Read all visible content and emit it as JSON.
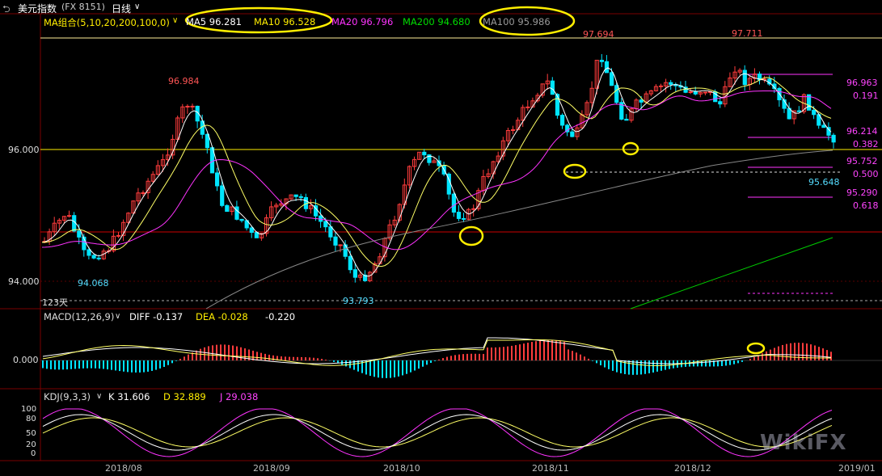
{
  "header": {
    "back_icon": "back-arrow-icon",
    "title": "美元指数",
    "code": "(FX 8151)",
    "period": "日线",
    "chevron_icon": "chevron-down-icon"
  },
  "ma_legend": {
    "group": "MA组合(5,10,20,200,100,0)",
    "ma5": "MA5 96.281",
    "ma10": "MA10 96.528",
    "ma20": "MA20 96.796",
    "ma200": "MA200 94.680",
    "ma100": "MA100 95.986"
  },
  "macd_legend": {
    "name": "MACD(12,26,9)",
    "diff": "DIFF -0.137",
    "dea": "DEA -0.028",
    "macd": "-0.220"
  },
  "kdj_legend": {
    "name": "KDJ(9,3,3)",
    "k": "K 31.606",
    "d": "D 32.889",
    "j": "J 29.038"
  },
  "main_axis": {
    "y1": "96.000",
    "y2": "94.000"
  },
  "macd_axis": {
    "zero": "0.000"
  },
  "kdj_axis": [
    "100",
    "80",
    "50",
    "20",
    "0"
  ],
  "price_labels": {
    "high1": "96.984",
    "low1": "94.068",
    "low2": "93.793",
    "high2": "97.694",
    "high3": "97.711",
    "low3": "95.648",
    "days": "123天"
  },
  "fib_levels": [
    {
      "price": "96.963",
      "ratio": "0.191"
    },
    {
      "price": "96.214",
      "ratio": "0.382"
    },
    {
      "price": "95.752",
      "ratio": "0.500"
    },
    {
      "price": "95.290",
      "ratio": "0.618"
    }
  ],
  "x_axis": [
    "2018/08",
    "2018/09",
    "2018/10",
    "2018/11",
    "2018/12",
    "2019/01"
  ],
  "watermark": "WikiFX",
  "colors": {
    "up": "#ff3c3c",
    "down": "#00e5ff",
    "ma5": "#ffffff",
    "ma10": "#ffff66",
    "ma20": "#ff33ff",
    "ma100": "#888888",
    "ma200": "#00cc00",
    "fib": "#ff33ff",
    "highlight": "#ffee00"
  }
}
